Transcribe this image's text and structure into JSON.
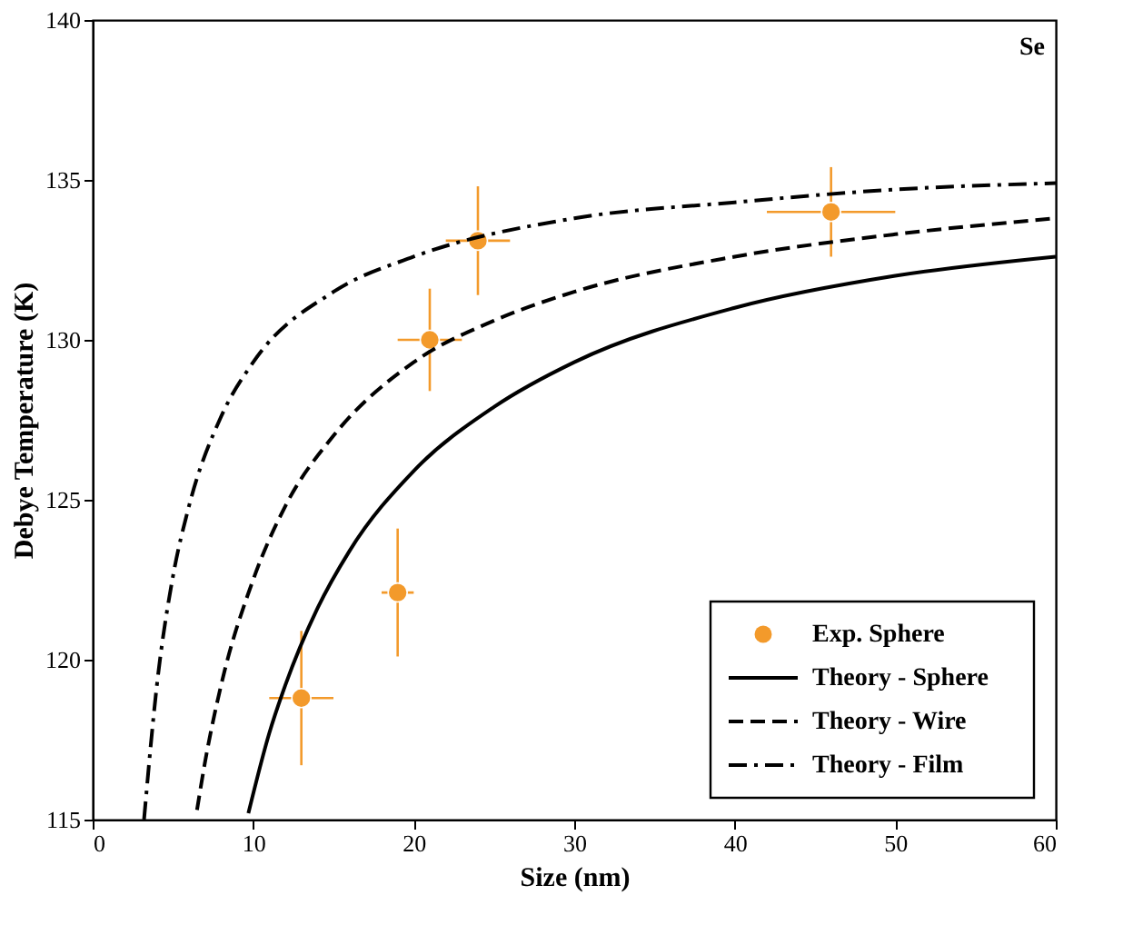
{
  "chart_data": {
    "type": "scatter",
    "xlabel": "Size (nm)",
    "ylabel": "Debye Temperature (K)",
    "xlim": [
      0,
      60
    ],
    "xticks": [
      0,
      10,
      20,
      30,
      40,
      50,
      60
    ],
    "ylim": [
      115,
      140
    ],
    "yticks": [
      115,
      120,
      125,
      130,
      135,
      140
    ],
    "grid": false,
    "legend": "bottom right",
    "annotations": [
      "Se"
    ],
    "series": [
      {
        "name": "Exp. Sphere",
        "type": "scatter",
        "marker": "circle",
        "color": "#f39a2b",
        "x": [
          13,
          19,
          21,
          24,
          46
        ],
        "values": [
          118.8,
          122.1,
          130.0,
          133.1,
          134.0
        ],
        "errors": [
          2.1,
          2.0,
          1.6,
          1.7,
          1.4
        ],
        "xerrors": [
          2,
          1,
          2,
          2,
          4
        ]
      },
      {
        "name": "Theory - Sphere",
        "type": "line",
        "line_style": "solid",
        "color": "#000000",
        "x": [
          9.7,
          11,
          12,
          14,
          16,
          20,
          25,
          30,
          40,
          50,
          60
        ],
        "values": [
          115.2,
          117.7,
          119.2,
          121.6,
          123.4,
          125.9,
          127.9,
          129.3,
          131.0,
          132.0,
          132.6
        ]
      },
      {
        "name": "Theory - Wire",
        "type": "line",
        "line_style": "dashed",
        "color": "#000000",
        "x": [
          6.5,
          7,
          8,
          10,
          12,
          15,
          20,
          25,
          30,
          40,
          50,
          60
        ],
        "values": [
          115.3,
          116.8,
          119.2,
          122.5,
          124.8,
          127.0,
          129.3,
          130.6,
          131.5,
          132.6,
          133.3,
          133.8
        ]
      },
      {
        "name": "Theory - Film",
        "type": "line",
        "line_style": "dashdot",
        "color": "#000000",
        "x": [
          3.2,
          4,
          5,
          6,
          8,
          10,
          15,
          20,
          30,
          40,
          50,
          60
        ],
        "values": [
          115.0,
          119.2,
          122.6,
          124.8,
          127.6,
          129.3,
          131.5,
          132.6,
          133.8,
          134.3,
          134.7,
          134.9
        ]
      }
    ]
  }
}
